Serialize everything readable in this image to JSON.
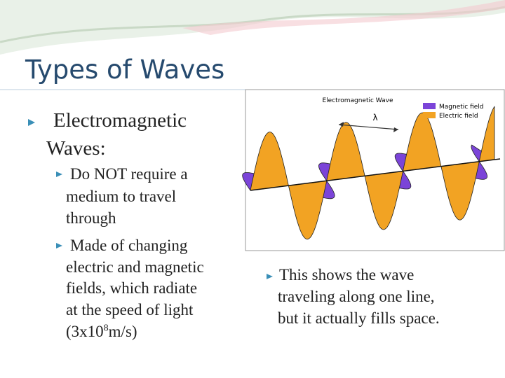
{
  "slide": {
    "title": "Types of Waves",
    "main_bullet": {
      "lines": [
        "Electromagnetic",
        "Waves:"
      ]
    },
    "sub_bullets": [
      {
        "lines": [
          "Do NOT require a",
          "medium to travel",
          "through"
        ]
      },
      {
        "lines": [
          "Made of changing",
          "electric and magnetic",
          "fields, which radiate",
          "at the speed of light"
        ],
        "last_line": {
          "before": "(3x10",
          "sup": "8",
          "after": "m/s)"
        }
      }
    ],
    "figure": {
      "title": "Electromagnetic Wave",
      "wavelength_symbol": "λ",
      "legend": [
        "Magnetic field",
        "Electric field"
      ]
    },
    "caption": {
      "lines": [
        "This shows the wave",
        "traveling along one line,",
        "but it actually fills space."
      ]
    }
  }
}
